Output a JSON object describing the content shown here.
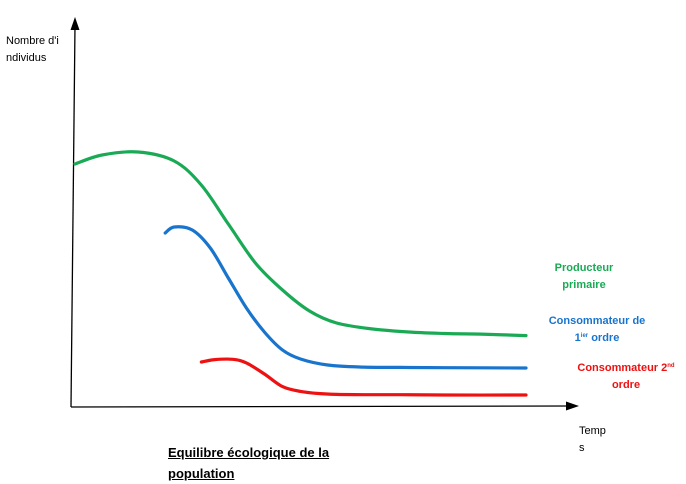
{
  "chart_data": {
    "type": "line",
    "title": "Equilibre écologique de la population",
    "ylabel": "Nombre d'individus",
    "xlabel": "Temps",
    "xlim": [
      0,
      100
    ],
    "ylim": [
      0,
      100
    ],
    "grid": false,
    "series": [
      {
        "name_parts": [
          "Producteur primaire"
        ],
        "color": "#1aaa55",
        "x": [
          0,
          6,
          14,
          22,
          28,
          34,
          40,
          46,
          52,
          58,
          66,
          74,
          82,
          90,
          100
        ],
        "y": [
          80,
          83,
          84,
          81,
          73,
          60,
          47,
          38,
          31,
          27,
          25,
          24,
          23.5,
          23.3,
          22.8
        ]
      },
      {
        "name_parts": [
          "Consommateur de ",
          "1",
          "ier",
          " ordre"
        ],
        "color": "#1874cd",
        "x": [
          20,
          22,
          26,
          30,
          34,
          38,
          42,
          46,
          50,
          56,
          64,
          72,
          82,
          100
        ],
        "y": [
          57,
          59,
          58,
          52,
          42,
          32,
          24,
          18,
          15,
          13,
          12.3,
          12.2,
          12.1,
          12
        ]
      },
      {
        "name_parts": [
          "Consommateur 2",
          "nd",
          " ordre"
        ],
        "color": "#ee1111",
        "x": [
          28,
          31,
          35,
          38,
          42,
          46,
          50,
          54,
          58,
          64,
          72,
          82,
          100
        ],
        "y": [
          14,
          14.8,
          14.9,
          13.7,
          10,
          5.8,
          4.2,
          3.5,
          3.2,
          3.1,
          3.1,
          3,
          3
        ]
      }
    ]
  }
}
